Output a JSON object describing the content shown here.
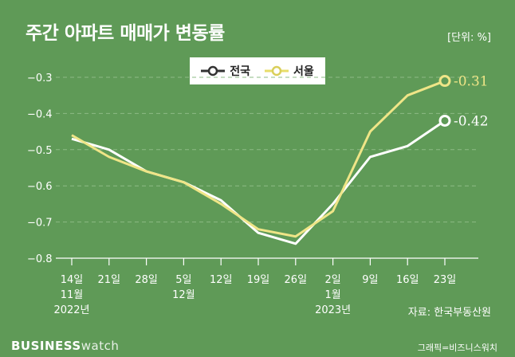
{
  "header": {
    "title": "주간 아파트 매매가 변동률",
    "unit": "[단위: %]"
  },
  "footer": {
    "source": "자료: 한국부동산원",
    "brand_bold": "BUSINESS",
    "brand_light": "watch",
    "credit": "그래픽=비즈니스워치"
  },
  "colors": {
    "background": "#5f9a57",
    "national": "#ffffff",
    "seoul": "#efe587",
    "grid": "#8dbb85"
  },
  "chart_data": {
    "type": "line",
    "title": "주간 아파트 매매가 변동률",
    "unit": "[단위: %]",
    "ylim": [
      -0.8,
      -0.3
    ],
    "yticks": [
      -0.3,
      -0.4,
      -0.5,
      -0.6,
      -0.7,
      -0.8
    ],
    "ytick_labels": [
      "−0.3",
      "−0.4",
      "−0.5",
      "−0.6",
      "−0.7",
      "−0.8"
    ],
    "grid": true,
    "legend_position": "top-center",
    "categories": [
      "2022-11-14",
      "2022-11-21",
      "2022-11-28",
      "2022-12-05",
      "2022-12-12",
      "2022-12-19",
      "2022-12-26",
      "2023-01-02",
      "2023-01-09",
      "2023-01-16",
      "2023-01-23"
    ],
    "x_tick_labels": [
      [
        "14일",
        "11월",
        "2022년"
      ],
      [
        "21일"
      ],
      [
        "28일"
      ],
      [
        "5일",
        "12월"
      ],
      [
        "12일"
      ],
      [
        "19일"
      ],
      [
        "26일"
      ],
      [
        "2일",
        "1월",
        "2023년"
      ],
      [
        "9일"
      ],
      [
        "16일"
      ],
      [
        "23일"
      ]
    ],
    "series": [
      {
        "name": "전국",
        "color": "#ffffff",
        "values": [
          -0.47,
          -0.5,
          -0.56,
          -0.59,
          -0.64,
          -0.73,
          -0.76,
          -0.65,
          -0.52,
          -0.49,
          -0.42
        ],
        "end_label": "-0.42"
      },
      {
        "name": "서울",
        "color": "#efe587",
        "values": [
          -0.46,
          -0.52,
          -0.56,
          -0.59,
          -0.65,
          -0.72,
          -0.74,
          -0.67,
          -0.45,
          -0.35,
          -0.31
        ],
        "end_label": "-0.31"
      }
    ]
  }
}
